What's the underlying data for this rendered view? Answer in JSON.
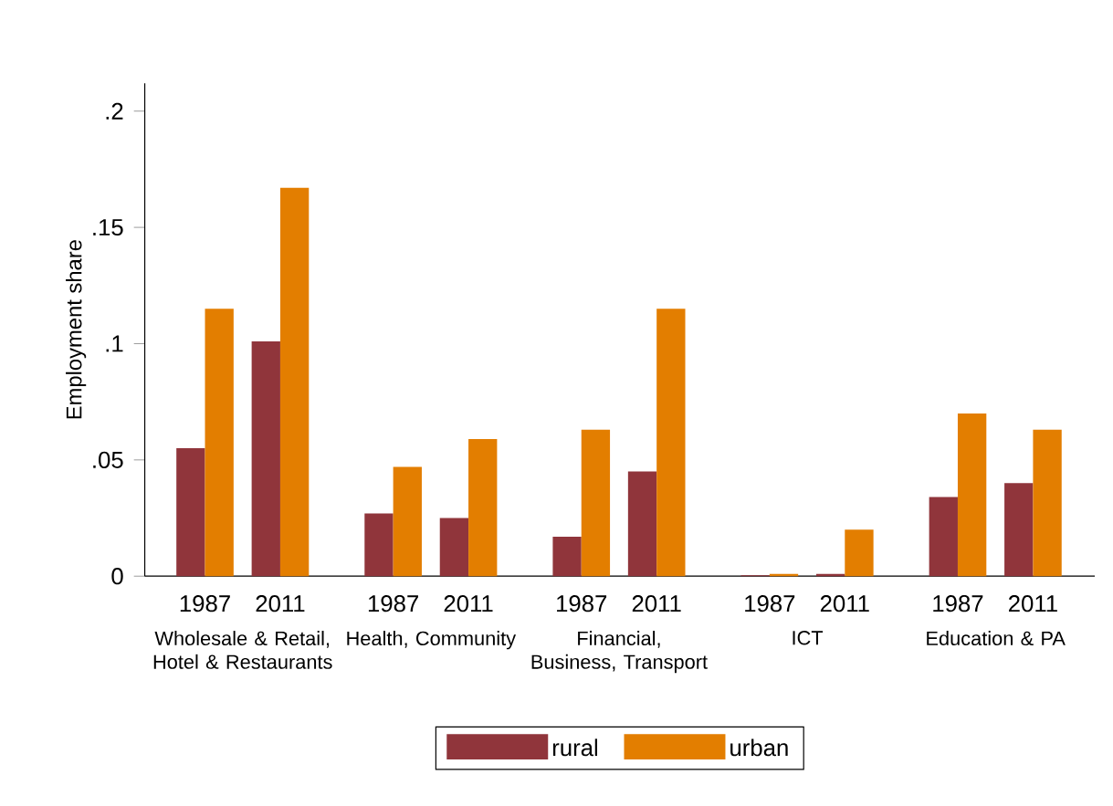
{
  "chart_data": {
    "type": "bar",
    "ylabel": "Employment share",
    "categories": [
      "1987",
      "2011",
      "1987",
      "2011",
      "1987",
      "2011",
      "1987",
      "2011",
      "1987",
      "2011"
    ],
    "annotations": [
      "Wholesale & Retail, Hotel & Restaurants",
      "Health, Community",
      "Financial, Business, Transport",
      "ICT",
      "Education & PA"
    ],
    "series": [
      {
        "name": "rural",
        "color": "#90353b",
        "values": [
          0.055,
          0.101,
          0.027,
          0.025,
          0.017,
          0.045,
          0.0004,
          0.001,
          0.034,
          0.04
        ]
      },
      {
        "name": "urban",
        "color": "#e37e00",
        "values": [
          0.115,
          0.167,
          0.047,
          0.059,
          0.063,
          0.115,
          0.001,
          0.02,
          0.07,
          0.063
        ]
      }
    ],
    "ylim": [
      0,
      0.212
    ],
    "yticks": [
      {
        "value": 0,
        "label": "0"
      },
      {
        "value": 0.05,
        "label": ".05"
      },
      {
        "value": 0.1,
        "label": ".1"
      },
      {
        "value": 0.15,
        "label": ".15"
      },
      {
        "value": 0.2,
        "label": ".2"
      }
    ],
    "legend": "bottom"
  }
}
